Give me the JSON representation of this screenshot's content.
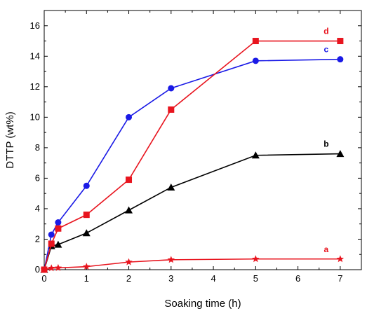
{
  "chart_data": {
    "type": "line",
    "xlabel": "Soaking time (h)",
    "ylabel": "DTTP (wt%)",
    "xlim": [
      0,
      7.5
    ],
    "ylim": [
      0,
      17
    ],
    "xticks": [
      0,
      1,
      2,
      3,
      4,
      5,
      6,
      7
    ],
    "yticks": [
      0,
      2,
      4,
      6,
      8,
      10,
      12,
      14,
      16
    ],
    "grid": false,
    "series": [
      {
        "name": "a",
        "color": "#e8141e",
        "marker": "star",
        "x": [
          0,
          0.17,
          0.33,
          1,
          2,
          3,
          5,
          7
        ],
        "y": [
          0,
          0.1,
          0.12,
          0.2,
          0.5,
          0.65,
          0.7,
          0.7
        ]
      },
      {
        "name": "b",
        "color": "#000000",
        "marker": "triangle",
        "x": [
          0,
          0.17,
          0.33,
          1,
          2,
          3,
          5,
          7
        ],
        "y": [
          0,
          1.55,
          1.65,
          2.4,
          3.9,
          5.4,
          7.5,
          7.6
        ]
      },
      {
        "name": "c",
        "color": "#1a1ae6",
        "marker": "circle",
        "x": [
          0,
          0.17,
          0.33,
          1,
          2,
          3,
          5,
          7
        ],
        "y": [
          0,
          2.3,
          3.1,
          5.5,
          10.0,
          11.9,
          13.7,
          13.8
        ]
      },
      {
        "name": "d",
        "color": "#e8141e",
        "marker": "square",
        "x": [
          0,
          0.17,
          0.33,
          1,
          2,
          3,
          5,
          7
        ],
        "y": [
          0,
          1.7,
          2.7,
          3.6,
          5.9,
          10.5,
          15.0,
          15.0
        ]
      }
    ]
  }
}
